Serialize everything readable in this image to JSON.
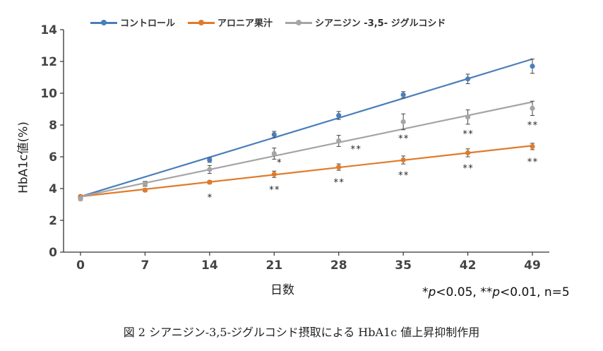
{
  "chart_data": {
    "type": "line",
    "x": [
      0,
      7,
      14,
      21,
      28,
      35,
      42,
      49
    ],
    "xlabel": "日数",
    "ylabel": "HbA1c値(%)",
    "ylim": [
      0,
      14
    ],
    "yticks": [
      0,
      2,
      4,
      6,
      8,
      10,
      12,
      14
    ],
    "series": [
      {
        "name": "コントロール",
        "color": "#4a7ebb",
        "values": [
          3.4,
          4.3,
          5.8,
          7.4,
          8.6,
          9.9,
          10.9,
          11.7
        ],
        "errors": [
          0.1,
          0.15,
          0.15,
          0.2,
          0.25,
          0.2,
          0.3,
          0.45
        ],
        "trend": [
          3.5,
          12.15
        ],
        "marks": [
          "",
          "",
          "",
          "",
          "",
          "",
          "",
          ""
        ]
      },
      {
        "name": "アロニア果汁",
        "color": "#e07b2a",
        "values": [
          3.5,
          3.9,
          4.4,
          4.9,
          5.35,
          5.8,
          6.25,
          6.65
        ],
        "errors": [
          0.1,
          0.1,
          0.1,
          0.2,
          0.2,
          0.25,
          0.25,
          0.2
        ],
        "trend": [
          3.5,
          6.7
        ],
        "marks": [
          "",
          "",
          "*",
          "**",
          "**",
          "**",
          "**",
          "**"
        ]
      },
      {
        "name": "シアニジン -3,5- ジグルコシド",
        "color": "#a5a5a5",
        "values": [
          3.35,
          4.3,
          5.2,
          6.2,
          7.0,
          8.2,
          8.5,
          9.05
        ],
        "errors": [
          0.1,
          0.15,
          0.25,
          0.35,
          0.35,
          0.5,
          0.45,
          0.45
        ],
        "trend": [
          3.5,
          9.45
        ],
        "marks": [
          "",
          "",
          "",
          "*",
          "**",
          "**",
          "**",
          "**"
        ]
      }
    ]
  },
  "note": "*p<0.05, **p<0.01, n=5",
  "caption": "図 2 シアニジン-3,5-ジグルコシド摂取による HbA1c 値上昇抑制作用"
}
